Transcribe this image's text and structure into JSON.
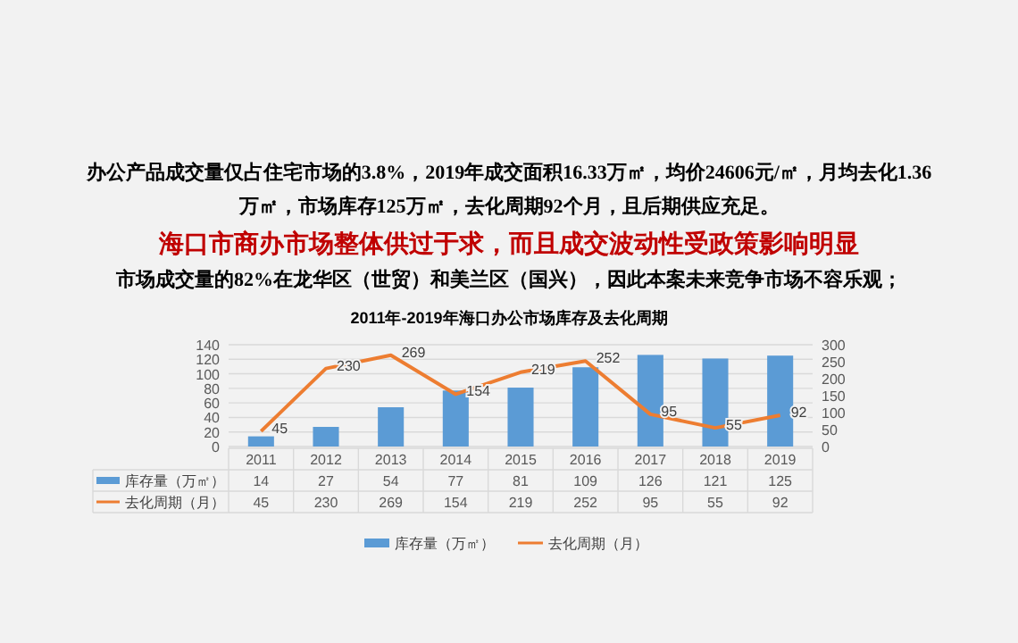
{
  "chart_data": {
    "type": "bar",
    "title": "2011年-2019年海口办公市场库存及去化周期",
    "subtitle": "海口市商办市场整体供过于求，而且成交波动性受政策影响明显",
    "annotations": [
      "办公产品成交量仅占住宅市场的3.8%，2019年成交面积16.33万㎡，均价24606元/㎡，月均去化1.36万㎡，市场库存125万㎡，去化周期92个月，且后期供应充足。",
      "市场成交量的82%在龙华区（世贸）和美兰区（国兴），因此本案未来竞争市场不容乐观；"
    ],
    "categories": [
      "2011",
      "2012",
      "2013",
      "2014",
      "2015",
      "2016",
      "2017",
      "2018",
      "2019"
    ],
    "series": [
      {
        "name": "库存量（万㎡）",
        "color": "#5b9bd5",
        "values": [
          14,
          27,
          54,
          77,
          81,
          109,
          126,
          121,
          125
        ]
      },
      {
        "name": "去化周期（月）",
        "type": "line",
        "axis": "y2",
        "color": "#ed7d31",
        "values": [
          45,
          230,
          269,
          154,
          219,
          252,
          95,
          55,
          92
        ],
        "value_labels": [
          "45",
          "230",
          "269",
          "154",
          "219",
          "252",
          "95",
          "55",
          "92"
        ]
      }
    ],
    "ylim": [
      0,
      140
    ],
    "yticks": [
      0,
      20,
      40,
      60,
      80,
      100,
      120,
      140
    ],
    "y2lim": [
      0,
      300
    ],
    "y2ticks": [
      0,
      50,
      100,
      150,
      200,
      250,
      300
    ],
    "grid": "y",
    "legend": "bottom",
    "data_labels": true,
    "marker": "none",
    "line_style": "solid"
  }
}
